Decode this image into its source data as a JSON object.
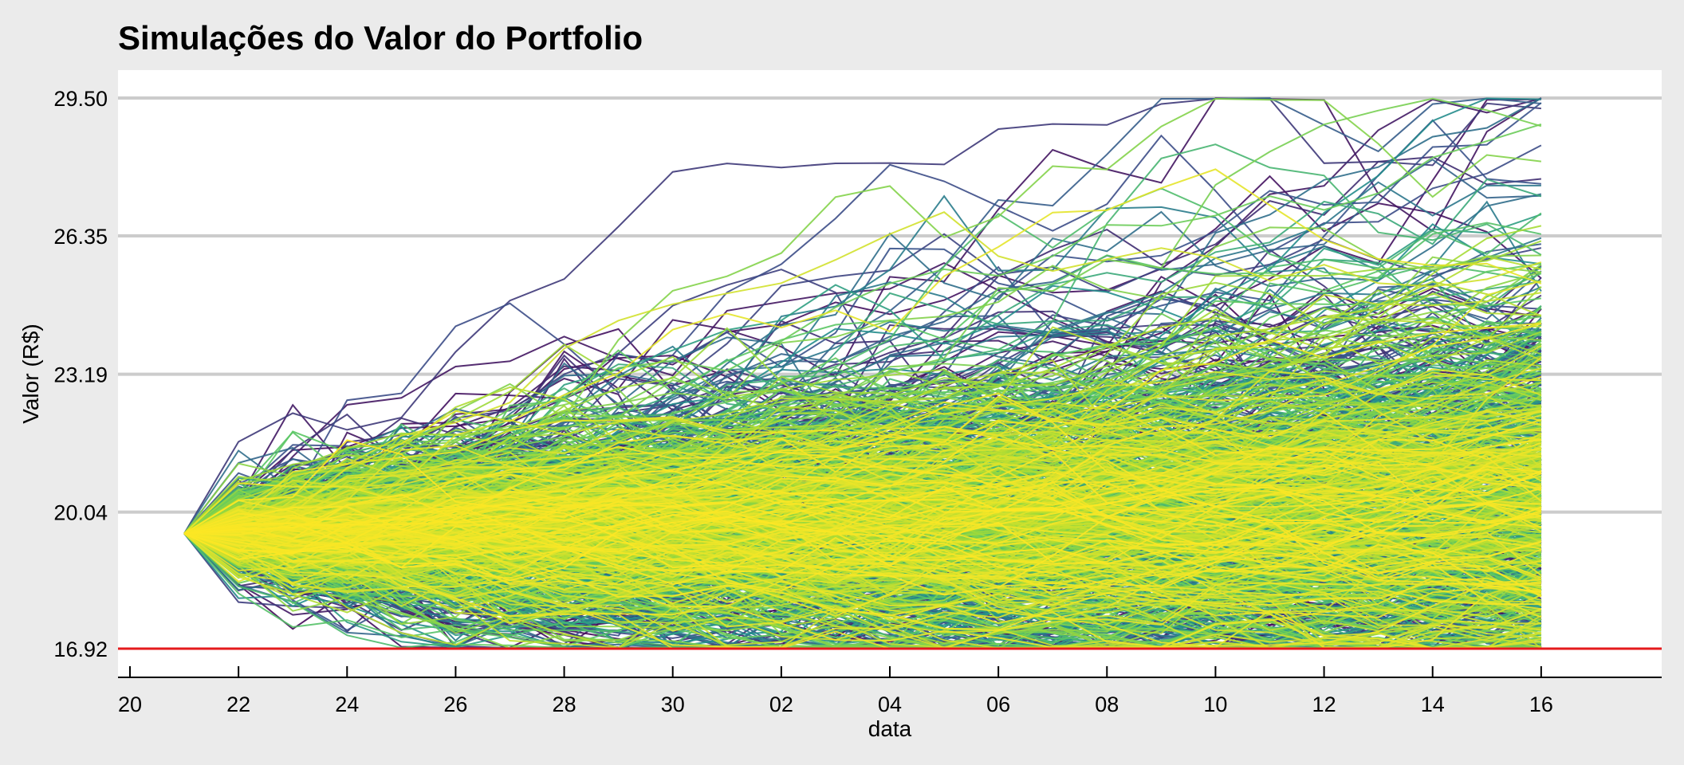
{
  "chart_data": {
    "type": "line",
    "title": "Simulações do Valor do Portfolio",
    "xlabel": "data",
    "ylabel": "Valor (R$)",
    "x_ticks": [
      "20",
      "22",
      "24",
      "26",
      "28",
      "30",
      "02",
      "04",
      "06",
      "08",
      "10",
      "12",
      "14",
      "16"
    ],
    "x_range": [
      0,
      28
    ],
    "y_ticks": [
      "16.92",
      "20.04",
      "23.19",
      "26.35",
      "29.50"
    ],
    "ylim": [
      16.25,
      30.15
    ],
    "start_point": {
      "x": 1,
      "y": 19.55
    },
    "end_x": 26,
    "reference_line": {
      "y": 16.92,
      "color": "#e41a1c"
    },
    "simulations": {
      "count_approx": 1000,
      "min_final": 16.92,
      "max_final": 29.5,
      "colormap": "viridis",
      "palette": [
        "#440154",
        "#3b528b",
        "#21918c",
        "#5ec962",
        "#a6db35",
        "#fde725"
      ]
    },
    "grid": "horizontal",
    "background": "#ebebeb",
    "panel_background": "#ffffff",
    "gridline_color": "#cccccc"
  }
}
